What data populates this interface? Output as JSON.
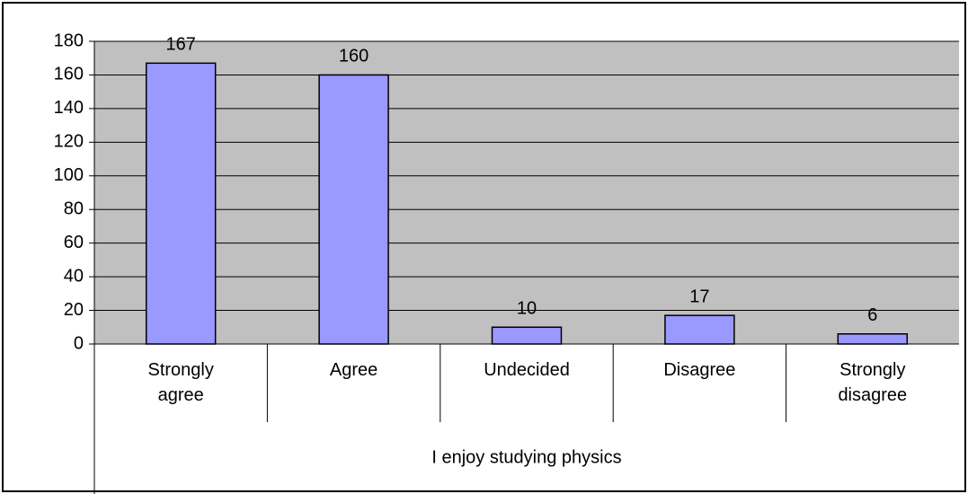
{
  "chart_data": {
    "type": "bar",
    "categories": [
      "Strongly agree",
      "Agree",
      "Undecided",
      "Disagree",
      "Strongly disagree"
    ],
    "values": [
      167,
      160,
      10,
      17,
      6
    ],
    "color": "#9999ff",
    "xlabel": "I enjoy studying physics",
    "ylim": [
      0,
      180
    ],
    "yticks": [
      0,
      20,
      40,
      60,
      80,
      100,
      120,
      140,
      160,
      180
    ],
    "grid": true
  }
}
